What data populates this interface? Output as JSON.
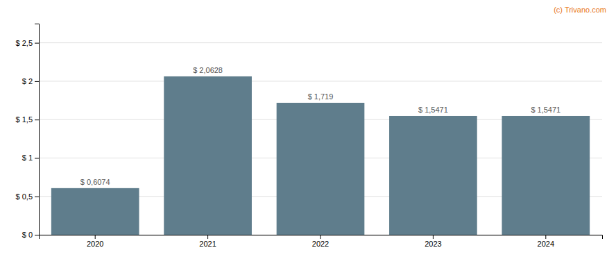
{
  "chart_data": {
    "type": "bar",
    "categories": [
      "2020",
      "2021",
      "2022",
      "2023",
      "2024"
    ],
    "values": [
      0.6074,
      2.0628,
      1.719,
      1.5471,
      1.5471
    ],
    "value_labels": [
      "$ 0,6074",
      "$ 2,0628",
      "$ 1,719",
      "$ 1,5471",
      "$ 1,5471"
    ],
    "data_labels": true,
    "color": "#5f7d8c",
    "ylim": [
      0,
      2.75
    ],
    "yticks": [
      {
        "value": 0,
        "label": "$ 0"
      },
      {
        "value": 0.5,
        "label": "$ 0,5"
      },
      {
        "value": 1.0,
        "label": "$ 1"
      },
      {
        "value": 1.5,
        "label": "$ 1,5"
      },
      {
        "value": 2.0,
        "label": "$ 2"
      },
      {
        "value": 2.5,
        "label": "$ 2,5"
      }
    ],
    "grid": true,
    "annotations": [
      {
        "text": "(c) Trivano.com",
        "color": "#e87722"
      }
    ]
  }
}
